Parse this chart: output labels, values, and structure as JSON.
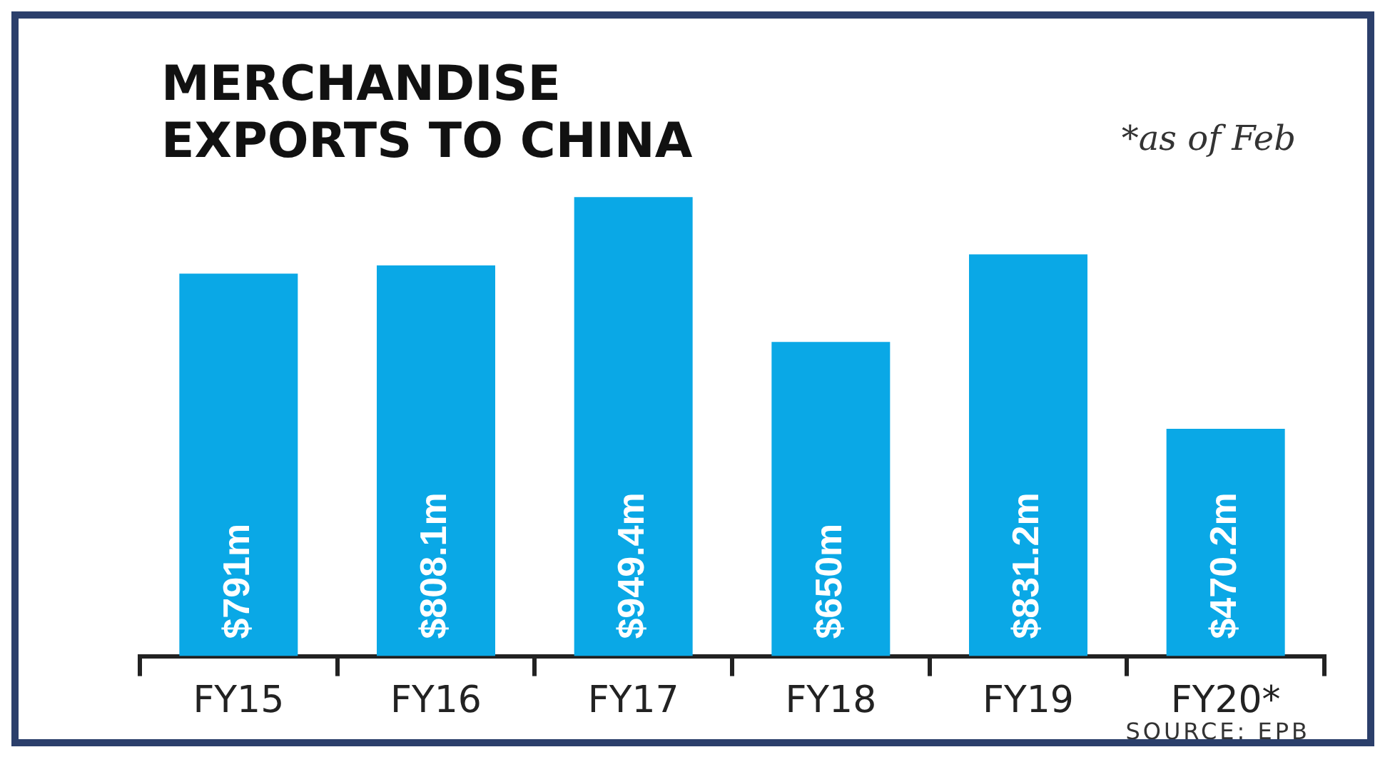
{
  "chart_data": {
    "type": "bar",
    "title": "MERCHANDISE EXPORTS TO CHINA",
    "categories": [
      "FY15",
      "FY16",
      "FY17",
      "FY18",
      "FY19",
      "FY20*"
    ],
    "values": [
      791,
      808.1,
      949.4,
      650,
      831.2,
      470.2
    ],
    "value_labels": [
      "$791m",
      "$808.1m",
      "$949.4m",
      "$650m",
      "$831.2m",
      "$470.2m"
    ],
    "color": "#0aa8e6",
    "annotations": [
      "*as of Feb",
      "SOURCE: EPB"
    ],
    "grid": false,
    "legend": false
  }
}
